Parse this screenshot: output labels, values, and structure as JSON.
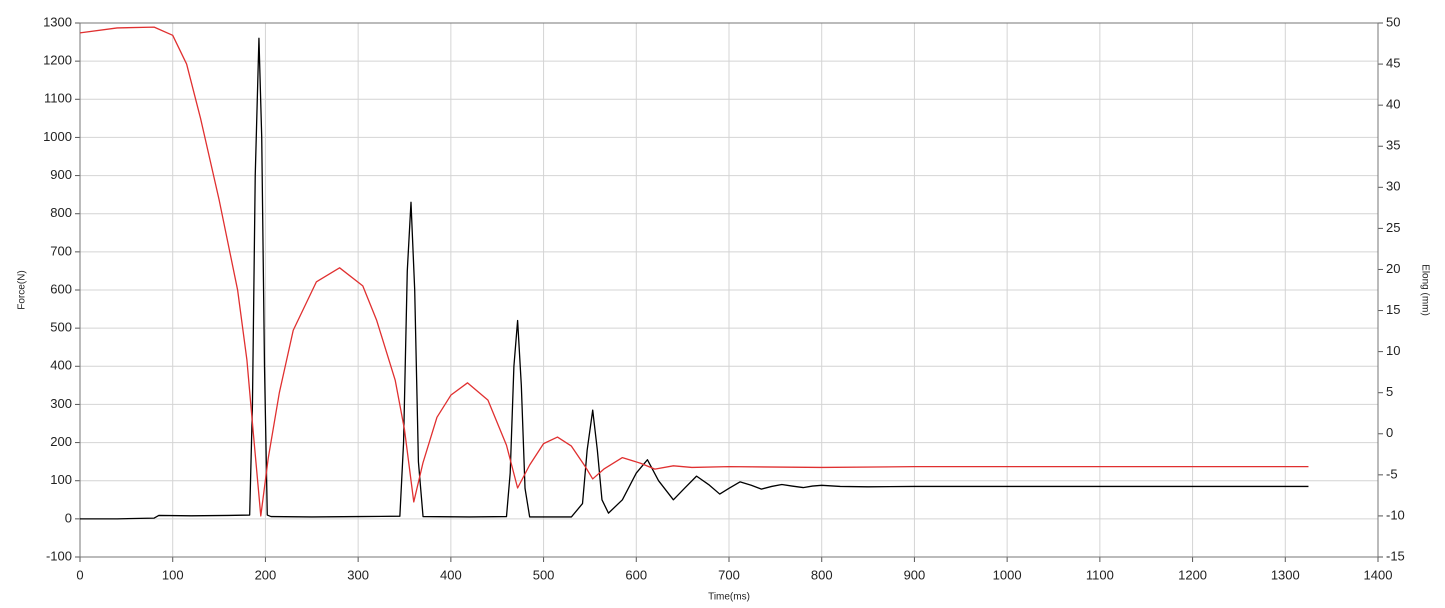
{
  "chart_data": {
    "type": "line",
    "x_label": "Time(ms)",
    "y_label": "Force(N)",
    "y2_label": "Elong (mm)",
    "xlim": [
      0,
      1400
    ],
    "xticks": [
      0,
      100,
      200,
      300,
      400,
      500,
      600,
      700,
      800,
      900,
      1000,
      1100,
      1200,
      1300,
      1400
    ],
    "ylim": [
      -100,
      1300
    ],
    "yticks": [
      -100,
      0,
      100,
      200,
      300,
      400,
      500,
      600,
      700,
      800,
      900,
      1000,
      1100,
      1200,
      1300
    ],
    "y2lim": [
      -15,
      50
    ],
    "y2ticks": [
      -15,
      -10,
      -5,
      0,
      5,
      10,
      15,
      20,
      25,
      30,
      35,
      40,
      45,
      50
    ],
    "grid": true,
    "series": [
      {
        "name": "Force",
        "color": "#000000",
        "axis": "y",
        "x": [
          0,
          40,
          80,
          85,
          120,
          160,
          183,
          186,
          189,
          193,
          196,
          199,
          202,
          206,
          250,
          300,
          345,
          349,
          353,
          357,
          361,
          365,
          370,
          420,
          460,
          464,
          468,
          472,
          476,
          480,
          485,
          530,
          542,
          547,
          553,
          558,
          563,
          570,
          585,
          600,
          612,
          624,
          640,
          652,
          665,
          678,
          690,
          700,
          712,
          724,
          735,
          746,
          757,
          768,
          780,
          790,
          800,
          820,
          850,
          900,
          1000,
          1100,
          1200,
          1325
        ],
        "values": [
          0,
          0,
          2,
          9,
          8,
          9,
          10,
          300,
          900,
          1260,
          1000,
          400,
          10,
          6,
          5,
          6,
          7,
          200,
          650,
          830,
          600,
          150,
          6,
          5,
          6,
          120,
          400,
          520,
          350,
          80,
          5,
          5,
          40,
          180,
          285,
          180,
          50,
          15,
          50,
          120,
          155,
          100,
          50,
          80,
          112,
          90,
          65,
          80,
          97,
          88,
          78,
          85,
          90,
          86,
          82,
          86,
          88,
          85,
          84,
          85,
          85,
          85,
          85,
          85
        ]
      },
      {
        "name": "Elong",
        "color": "#e03030",
        "axis": "y2",
        "x": [
          0,
          40,
          80,
          100,
          115,
          130,
          150,
          170,
          180,
          187,
          195,
          203,
          215,
          230,
          255,
          280,
          305,
          320,
          340,
          350,
          360,
          370,
          385,
          400,
          418,
          440,
          460,
          472,
          485,
          500,
          515,
          530,
          545,
          553,
          565,
          585,
          605,
          620,
          640,
          660,
          700,
          800,
          900,
          1000,
          1100,
          1200,
          1325
        ],
        "values": [
          48.8,
          49.4,
          49.5,
          48.5,
          45,
          38.4,
          28.5,
          17.5,
          9,
          0,
          -10,
          -3,
          5,
          12.6,
          18.5,
          20.2,
          18,
          13.8,
          6.5,
          0.5,
          -8.3,
          -3.5,
          2,
          4.7,
          6.2,
          4.1,
          -1.4,
          -6.6,
          -3.8,
          -1.2,
          -0.4,
          -1.5,
          -4,
          -5.5,
          -4.3,
          -2.9,
          -3.6,
          -4.3,
          -3.9,
          -4.1,
          -4,
          -4.1,
          -4,
          -4,
          -4,
          -4,
          -4
        ]
      }
    ]
  }
}
